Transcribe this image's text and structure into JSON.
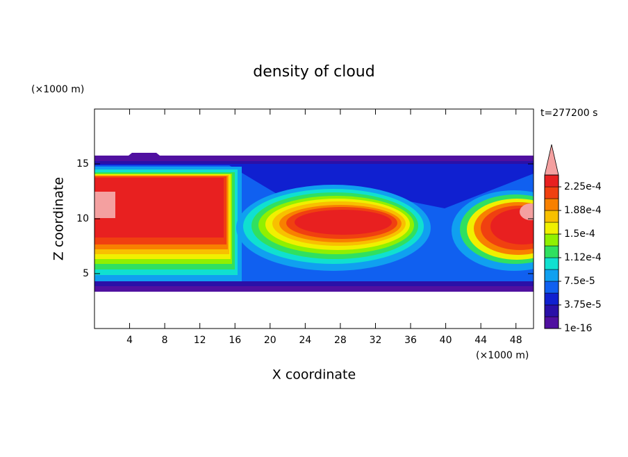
{
  "chart_data": {
    "type": "contour",
    "title": "density of cloud",
    "x_label": "X coordinate",
    "y_label": "Z coordinate",
    "x_unit": "(×1000 m)",
    "y_unit": "(×1000 m)",
    "time_label": "t=277200 s",
    "xlim": [
      0,
      50
    ],
    "xticks": [
      4,
      8,
      12,
      16,
      20,
      24,
      28,
      32,
      36,
      40,
      44,
      48
    ],
    "ylim": [
      0,
      20
    ],
    "yticks": [
      5,
      10,
      15
    ],
    "colorbar": {
      "clim": [
        1e-16,
        0.00024375
      ],
      "colors": [
        "#5010a0",
        "#2a10a8",
        "#1020d0",
        "#1060f0",
        "#10a0f0",
        "#10e0d0",
        "#30e060",
        "#90f000",
        "#f0f000",
        "#f8c000",
        "#f88000",
        "#f04010",
        "#e82020"
      ],
      "extend_color": "#f4a0a0",
      "ticks": [
        {
          "value": 1e-16,
          "label": "1e-16"
        },
        {
          "value": 3.75e-05,
          "label": "3.75e-5"
        },
        {
          "value": 7.5e-05,
          "label": "7.5e-5"
        },
        {
          "value": 0.0001125,
          "label": "1.12e-4"
        },
        {
          "value": 0.00015,
          "label": "1.5e-4"
        },
        {
          "value": 0.0001875,
          "label": "1.88e-4"
        },
        {
          "value": 0.000225,
          "label": "2.25e-4"
        }
      ]
    }
  }
}
